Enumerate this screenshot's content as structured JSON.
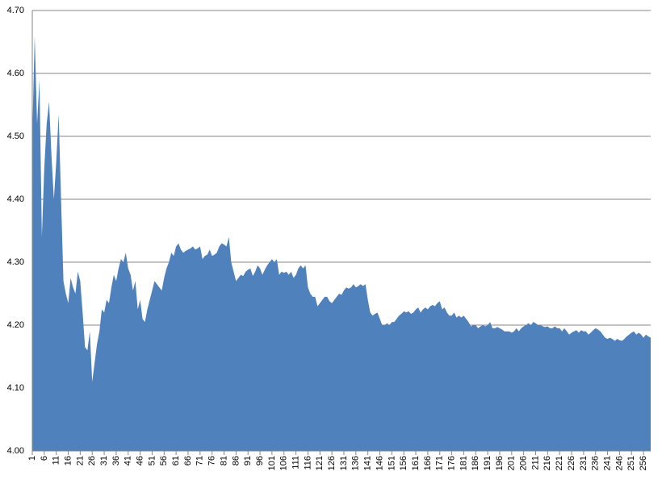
{
  "chart_data": {
    "type": "area",
    "color": "#4f81bd",
    "grid": true,
    "x": [
      1,
      2,
      3,
      4,
      5,
      6,
      7,
      8,
      9,
      10,
      11,
      12,
      13,
      14,
      15,
      16,
      17,
      18,
      19,
      20,
      21,
      22,
      23,
      24,
      25,
      26,
      27,
      28,
      29,
      30,
      31,
      32,
      33,
      34,
      35,
      36,
      37,
      38,
      39,
      40,
      41,
      42,
      43,
      44,
      45,
      46,
      47,
      48,
      49,
      50,
      51,
      52,
      53,
      54,
      55,
      56,
      57,
      58,
      59,
      60,
      61,
      62,
      63,
      64,
      65,
      66,
      67,
      68,
      69,
      70,
      71,
      72,
      73,
      74,
      75,
      76,
      77,
      78,
      79,
      80,
      81,
      82,
      83,
      84,
      85,
      86,
      87,
      88,
      89,
      90,
      91,
      92,
      93,
      94,
      95,
      96,
      97,
      98,
      99,
      100,
      101,
      102,
      103,
      104,
      105,
      106,
      107,
      108,
      109,
      110,
      111,
      112,
      113,
      114,
      115,
      116,
      117,
      118,
      119,
      120,
      121,
      122,
      123,
      124,
      125,
      126,
      127,
      128,
      129,
      130,
      131,
      132,
      133,
      134,
      135,
      136,
      137,
      138,
      139,
      140,
      141,
      142,
      143,
      144,
      145,
      146,
      147,
      148,
      149,
      150,
      151,
      152,
      153,
      154,
      155,
      156,
      157,
      158,
      159,
      160,
      161,
      162,
      163,
      164,
      165,
      166,
      167,
      168,
      169,
      170,
      171,
      172,
      173,
      174,
      175,
      176,
      177,
      178,
      179,
      180,
      181,
      182,
      183,
      184,
      185,
      186,
      187,
      188,
      189,
      190,
      191,
      192,
      193,
      194,
      195,
      196,
      197,
      198,
      199,
      200,
      201,
      202,
      203,
      204,
      205,
      206,
      207,
      208,
      209,
      210,
      211,
      212,
      213,
      214,
      215,
      216,
      217,
      218,
      219,
      220,
      221,
      222,
      223,
      224,
      225,
      226,
      227,
      228,
      229,
      230,
      231,
      232,
      233,
      234,
      235,
      236,
      237,
      238,
      239,
      240,
      241,
      242,
      243,
      244,
      245,
      246,
      247,
      248,
      249,
      250,
      251,
      252,
      253,
      254,
      255,
      256,
      257,
      258,
      259
    ],
    "values": [
      4.5,
      4.66,
      4.52,
      4.59,
      4.34,
      4.45,
      4.52,
      4.555,
      4.47,
      4.4,
      4.46,
      4.535,
      4.4,
      4.27,
      4.25,
      4.235,
      4.275,
      4.26,
      4.25,
      4.285,
      4.27,
      4.22,
      4.165,
      4.16,
      4.19,
      4.11,
      4.14,
      4.17,
      4.19,
      4.225,
      4.22,
      4.24,
      4.235,
      4.26,
      4.28,
      4.27,
      4.29,
      4.305,
      4.3,
      4.315,
      4.29,
      4.28,
      4.255,
      4.27,
      4.225,
      4.24,
      4.21,
      4.205,
      4.225,
      4.24,
      4.255,
      4.27,
      4.265,
      4.26,
      4.255,
      4.275,
      4.29,
      4.3,
      4.315,
      4.31,
      4.325,
      4.33,
      4.32,
      4.315,
      4.318,
      4.32,
      4.322,
      4.325,
      4.32,
      4.322,
      4.325,
      4.305,
      4.31,
      4.312,
      4.32,
      4.31,
      4.312,
      4.315,
      4.325,
      4.33,
      4.328,
      4.325,
      4.34,
      4.3,
      4.285,
      4.27,
      4.275,
      4.28,
      4.278,
      4.285,
      4.288,
      4.29,
      4.278,
      4.285,
      4.295,
      4.29,
      4.28,
      4.288,
      4.295,
      4.3,
      4.305,
      4.3,
      4.305,
      4.28,
      4.285,
      4.283,
      4.285,
      4.28,
      4.285,
      4.275,
      4.28,
      4.29,
      4.295,
      4.29,
      4.295,
      4.26,
      4.25,
      4.245,
      4.245,
      4.23,
      4.235,
      4.24,
      4.245,
      4.245,
      4.238,
      4.235,
      4.24,
      4.245,
      4.25,
      4.248,
      4.255,
      4.26,
      4.258,
      4.26,
      4.265,
      4.26,
      4.262,
      4.265,
      4.262,
      4.265,
      4.24,
      4.22,
      4.215,
      4.218,
      4.22,
      4.21,
      4.2,
      4.2,
      4.203,
      4.2,
      4.205,
      4.205,
      4.21,
      4.215,
      4.218,
      4.222,
      4.22,
      4.222,
      4.218,
      4.22,
      4.225,
      4.228,
      4.22,
      4.225,
      4.228,
      4.225,
      4.23,
      4.232,
      4.23,
      4.235,
      4.238,
      4.225,
      4.228,
      4.22,
      4.215,
      4.215,
      4.22,
      4.212,
      4.215,
      4.212,
      4.215,
      4.21,
      4.205,
      4.198,
      4.2,
      4.2,
      4.195,
      4.198,
      4.2,
      4.198,
      4.2,
      4.205,
      4.195,
      4.195,
      4.197,
      4.195,
      4.193,
      4.19,
      4.19,
      4.19,
      4.188,
      4.19,
      4.195,
      4.19,
      4.195,
      4.198,
      4.2,
      4.203,
      4.2,
      4.205,
      4.203,
      4.2,
      4.2,
      4.198,
      4.197,
      4.198,
      4.195,
      4.195,
      4.198,
      4.195,
      4.195,
      4.19,
      4.195,
      4.19,
      4.185,
      4.188,
      4.19,
      4.192,
      4.188,
      4.192,
      4.19,
      4.19,
      4.185,
      4.188,
      4.192,
      4.195,
      4.193,
      4.19,
      4.185,
      4.18,
      4.178,
      4.18,
      4.178,
      4.175,
      4.178,
      4.176,
      4.175,
      4.178,
      4.182,
      4.185,
      4.188,
      4.19,
      4.185,
      4.188,
      4.185,
      4.18,
      4.185,
      4.182,
      4.18
    ],
    "xlim": [
      1,
      259
    ],
    "xticks": [
      1,
      6,
      11,
      16,
      21,
      26,
      31,
      36,
      41,
      46,
      51,
      56,
      61,
      66,
      71,
      76,
      81,
      86,
      91,
      96,
      101,
      106,
      111,
      116,
      121,
      126,
      131,
      136,
      141,
      146,
      151,
      156,
      161,
      166,
      171,
      176,
      181,
      186,
      191,
      196,
      201,
      206,
      211,
      216,
      221,
      226,
      231,
      236,
      241,
      246,
      251,
      256
    ],
    "ylim": [
      4.0,
      4.7
    ],
    "yticks": [
      {
        "value": 4.0,
        "label": "4.00"
      },
      {
        "value": 4.1,
        "label": "4.10"
      },
      {
        "value": 4.2,
        "label": "4.20"
      },
      {
        "value": 4.3,
        "label": "4.30"
      },
      {
        "value": 4.4,
        "label": "4.40"
      },
      {
        "value": 4.5,
        "label": "4.50"
      },
      {
        "value": 4.6,
        "label": "4.60"
      },
      {
        "value": 4.7,
        "label": "4.70"
      }
    ]
  }
}
